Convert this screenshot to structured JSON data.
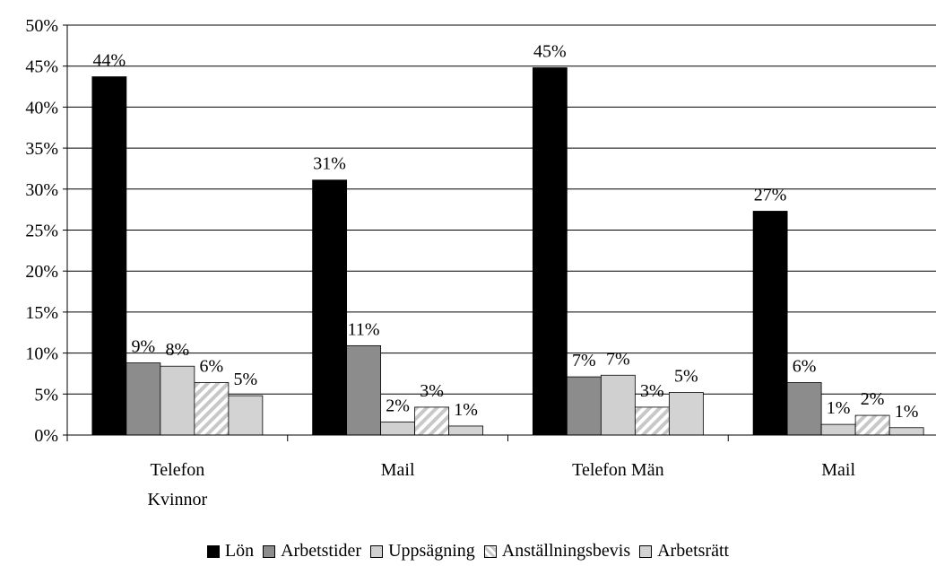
{
  "chart_data": {
    "type": "bar",
    "categories": [
      "Telefon Kvinnor",
      "Mail",
      "Telefon Män",
      "Mail"
    ],
    "series": [
      {
        "name": "Lön",
        "color": "#000000",
        "values": [
          43.7,
          31.1,
          44.8,
          27.3
        ],
        "value_labels": [
          "44%",
          "31%",
          "45%",
          "27%"
        ]
      },
      {
        "name": "Arbetstider",
        "color": "#8c8c8c",
        "values": [
          8.8,
          10.9,
          7.1,
          6.4
        ],
        "value_labels": [
          "9%",
          "11%",
          "7%",
          "6%"
        ]
      },
      {
        "name": "Uppsägning",
        "color": "#d0d0d0",
        "values": [
          8.4,
          1.6,
          7.3,
          1.3
        ],
        "value_labels": [
          "8%",
          "2%",
          "7%",
          "1%"
        ]
      },
      {
        "name": "Anställningsbevis",
        "color": "#c8c8c8",
        "pattern": "diagonal-hatch",
        "values": [
          6.4,
          3.4,
          3.4,
          2.4
        ],
        "value_labels": [
          "6%",
          "3%",
          "3%",
          "2%"
        ]
      },
      {
        "name": "Arbetsrätt",
        "color": "#d3d3d3",
        "values": [
          4.8,
          1.1,
          5.2,
          0.9
        ],
        "value_labels": [
          "5%",
          "1%",
          "5%",
          "1%"
        ]
      }
    ],
    "ylim": [
      0,
      50
    ],
    "yticks": [
      {
        "value": 0,
        "label": "0%"
      },
      {
        "value": 5,
        "label": "5%"
      },
      {
        "value": 10,
        "label": "10%"
      },
      {
        "value": 15,
        "label": "15%"
      },
      {
        "value": 20,
        "label": "20%"
      },
      {
        "value": 25,
        "label": "25%"
      },
      {
        "value": 30,
        "label": "30%"
      },
      {
        "value": 35,
        "label": "35%"
      },
      {
        "value": 40,
        "label": "40%"
      },
      {
        "value": 45,
        "label": "45%"
      },
      {
        "value": 50,
        "label": "50%"
      }
    ],
    "grid": true,
    "legend": "bottom"
  }
}
